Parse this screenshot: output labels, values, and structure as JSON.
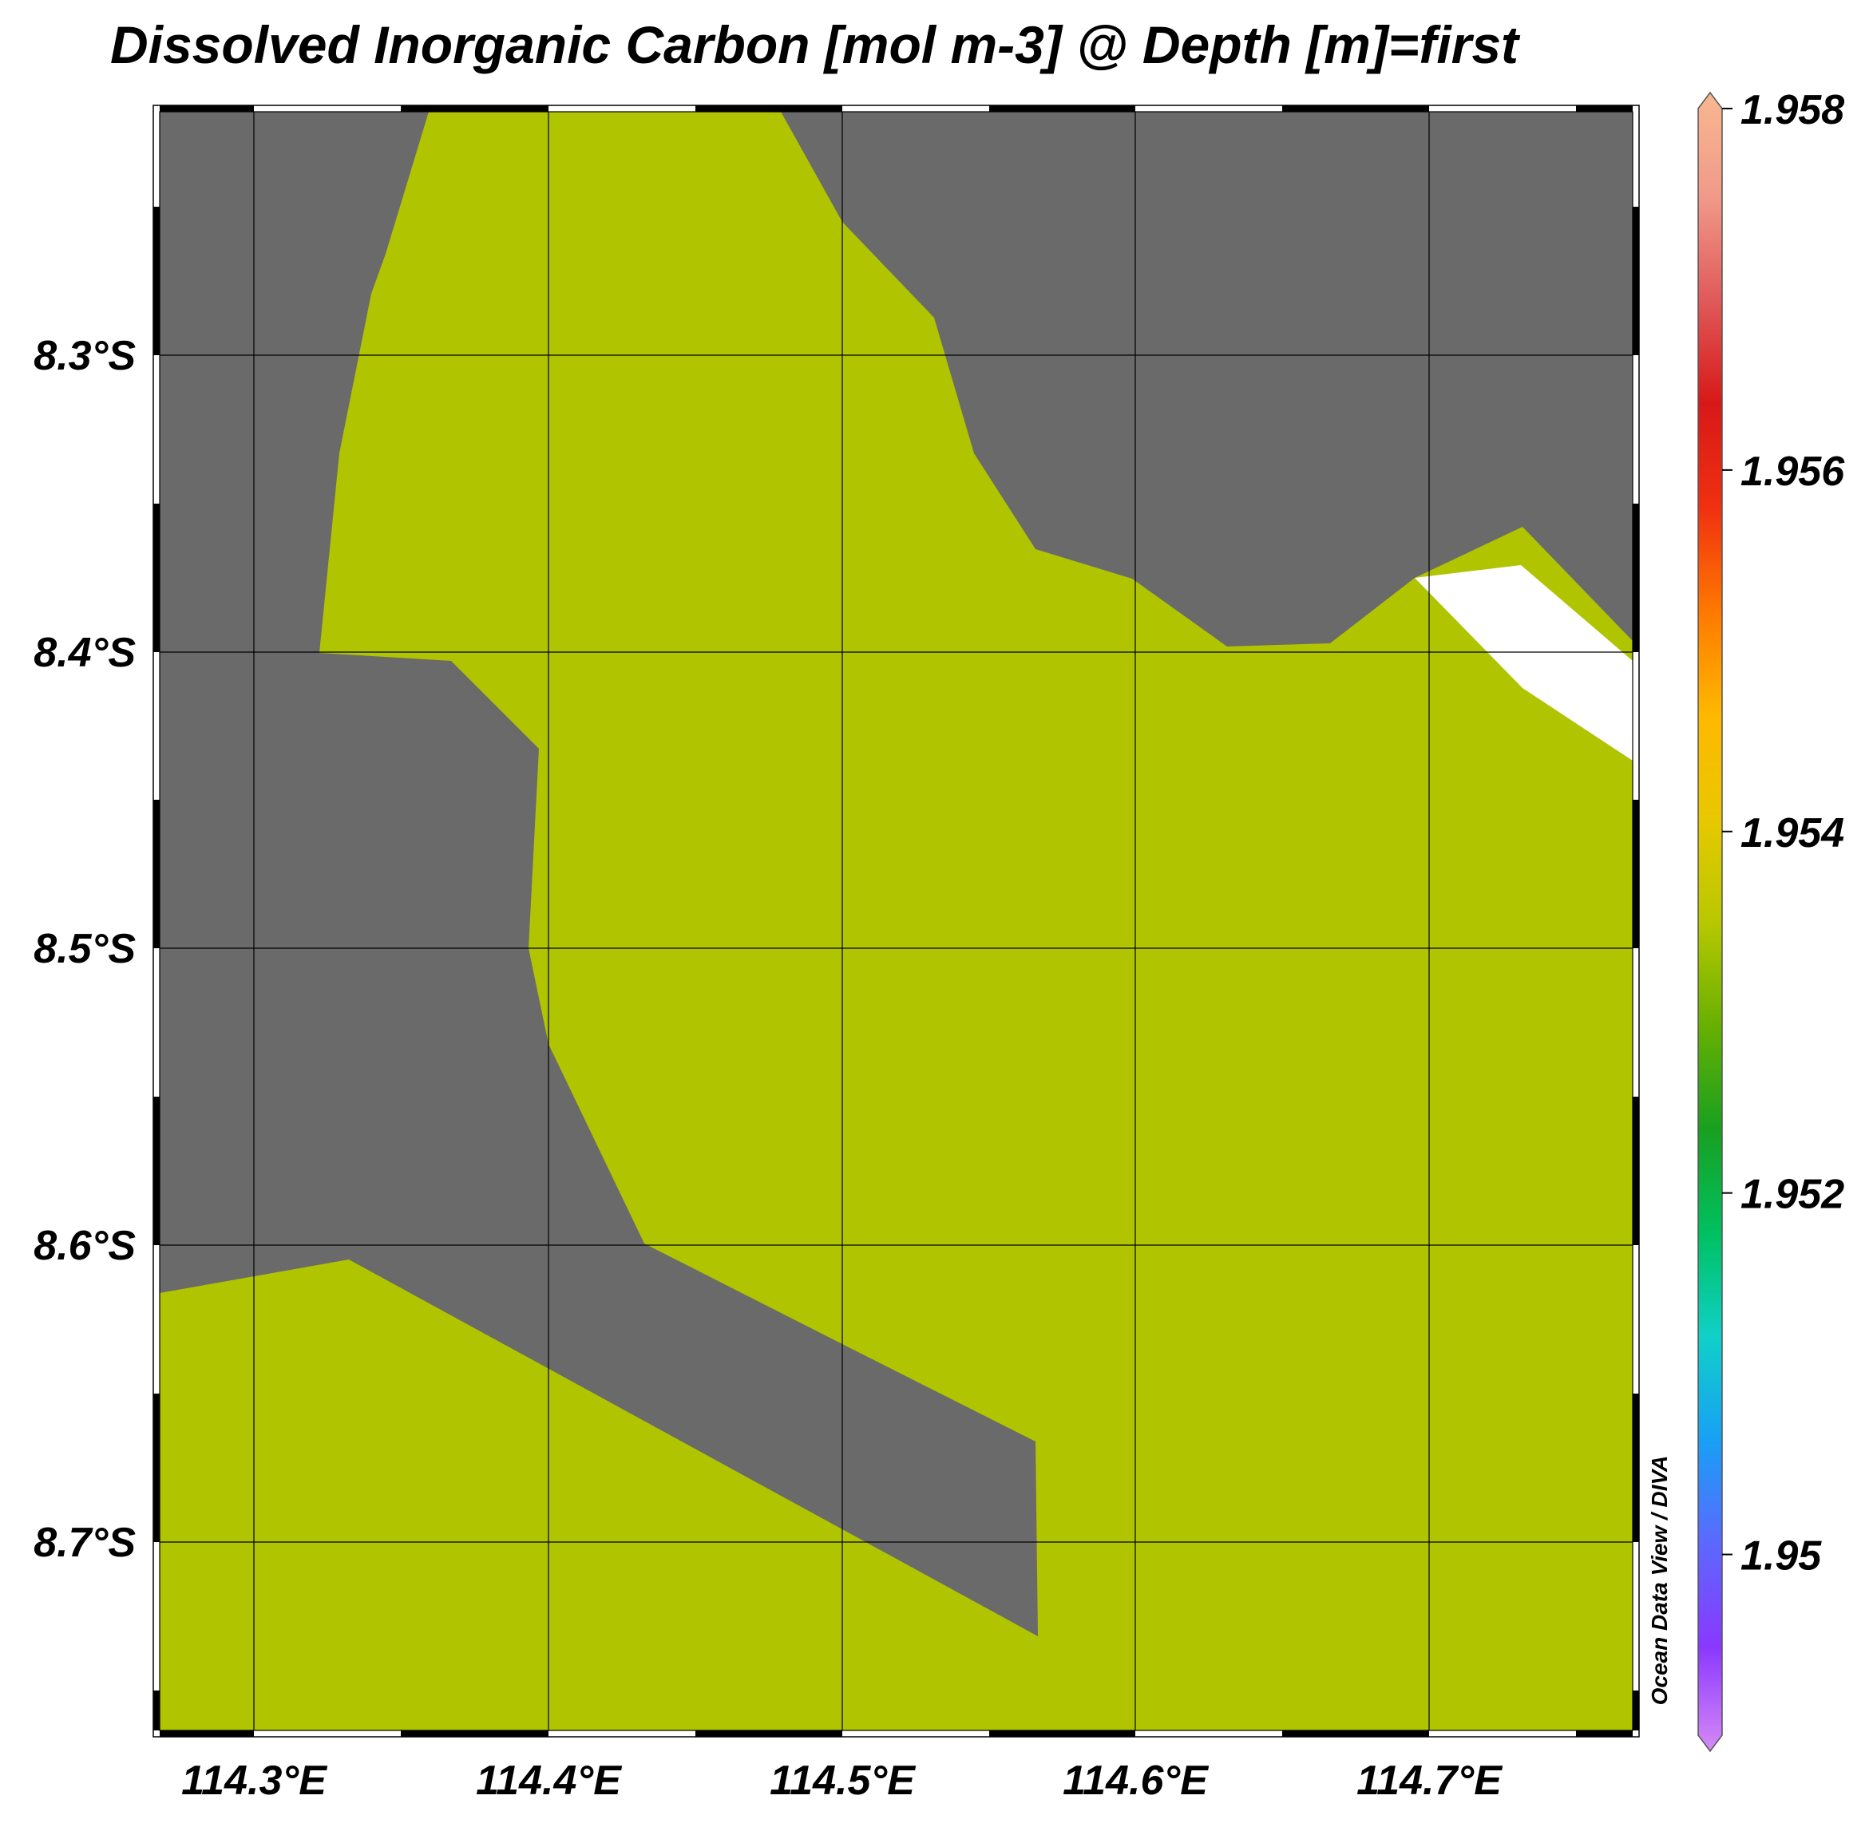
{
  "title": "Dissolved Inorganic Carbon [mol m-3] @ Depth [m]=first",
  "watermark": "Ocean Data View / DIVA",
  "map": {
    "longitude_ticks": [
      "114.3°E",
      "114.4°E",
      "114.5°E",
      "114.6°E",
      "114.7°E"
    ],
    "latitude_ticks": [
      "8.3°S",
      "8.4°S",
      "8.5°S",
      "8.6°S",
      "8.7°S"
    ],
    "colors": {
      "land": "#6a6a6a",
      "field": "#b0c400",
      "no_data": "#ffffff",
      "grid": "#000000"
    }
  },
  "colorbar": {
    "min": 1.949,
    "max": 1.958,
    "ticks": [
      "1.958",
      "1.956",
      "1.954",
      "1.952",
      "1.95"
    ],
    "tick_values": [
      1.958,
      1.956,
      1.954,
      1.952,
      1.95
    ],
    "stops": [
      "#d68af5",
      "#8a38ff",
      "#5c68ff",
      "#18a0f5",
      "#10d0c8",
      "#00c060",
      "#18a020",
      "#68b000",
      "#b8c800",
      "#e8c800",
      "#ffb800",
      "#ff7800",
      "#f03010",
      "#d81818",
      "#e05a5a",
      "#f09a8a",
      "#f8b890"
    ]
  }
}
